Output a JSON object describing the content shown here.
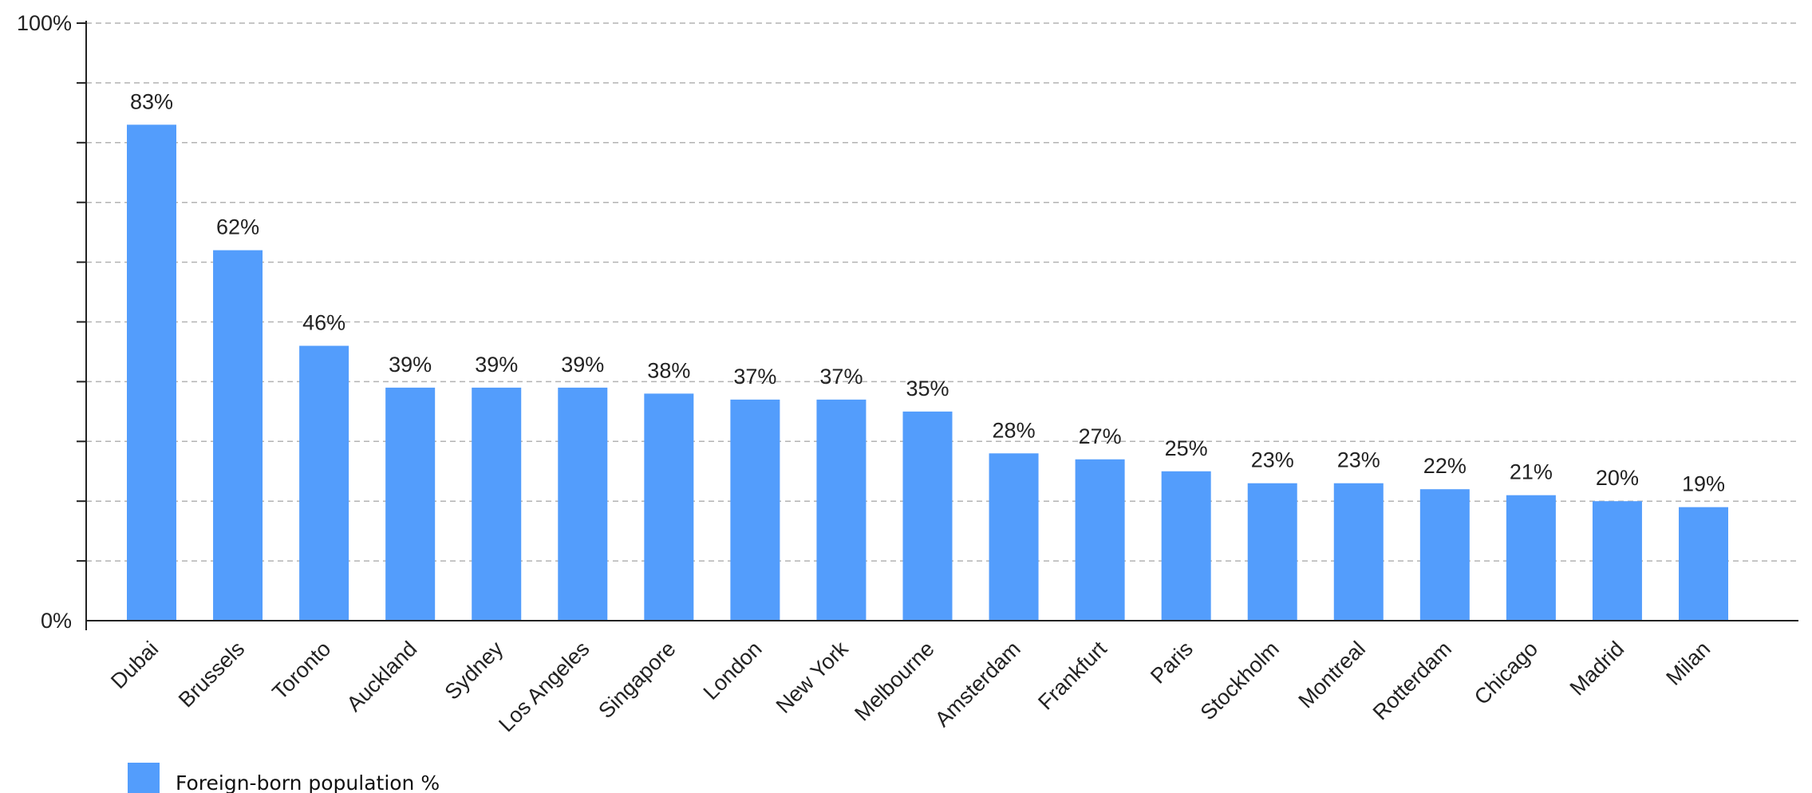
{
  "chart_data": {
    "type": "bar",
    "categories": [
      "Dubai",
      "Brussels",
      "Toronto",
      "Auckland",
      "Sydney",
      "Los Angeles",
      "Singapore",
      "London",
      "New York",
      "Melbourne",
      "Amsterdam",
      "Frankfurt",
      "Paris",
      "Stockholm",
      "Montreal",
      "Rotterdam",
      "Chicago",
      "Madrid",
      "Milan"
    ],
    "series": [
      {
        "name": "Foreign-born population %",
        "values": [
          83,
          62,
          46,
          39,
          39,
          39,
          38,
          37,
          37,
          35,
          28,
          27,
          25,
          23,
          23,
          22,
          21,
          20,
          19
        ],
        "data_labels": [
          "83%",
          "62%",
          "46%",
          "39%",
          "39%",
          "39%",
          "38%",
          "37%",
          "37%",
          "35%",
          "28%",
          "27%",
          "25%",
          "23%",
          "23%",
          "22%",
          "21%",
          "20%",
          "19%"
        ]
      }
    ],
    "title": "",
    "xlabel": "",
    "ylabel": "",
    "ylim": [
      0,
      100
    ],
    "y_gridlines": [
      10,
      20,
      30,
      40,
      50,
      60,
      70,
      80,
      90,
      100
    ],
    "y_tick_labels": [
      {
        "value": 0,
        "text": "0%"
      },
      {
        "value": 100,
        "text": "100%"
      }
    ],
    "grid": true,
    "legend_position": "bottom-left",
    "bar_color": "#539dfc"
  }
}
